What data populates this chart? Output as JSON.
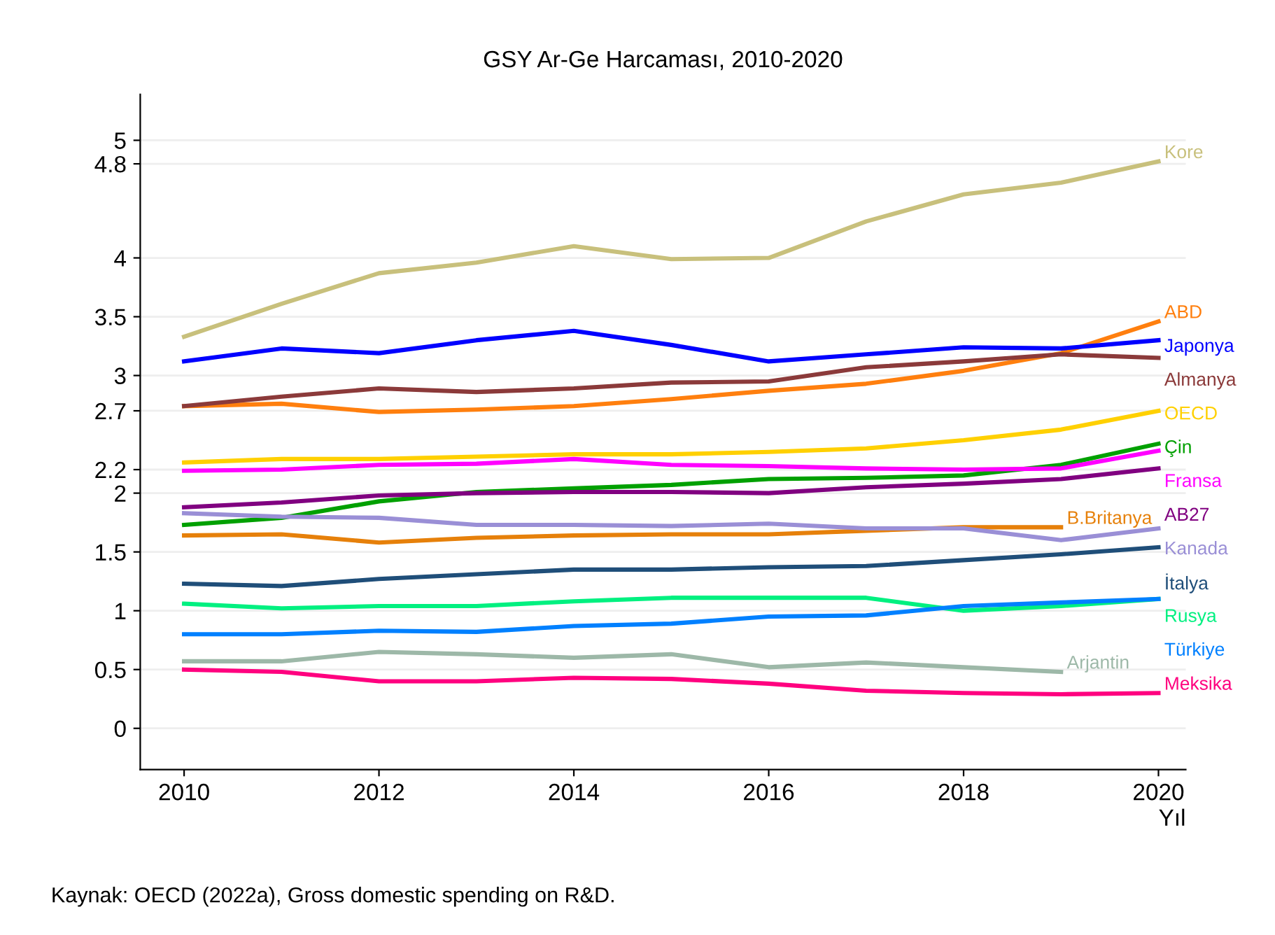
{
  "chart_data": {
    "type": "line",
    "title": "GSY Ar-Ge Harcaması, 2010-2020",
    "xlabel": "Yıl",
    "annotations": [
      "Kaynak: OECD (2022a), Gross domestic spending on R&D."
    ],
    "x": [
      2010,
      2011,
      2012,
      2013,
      2014,
      2015,
      2016,
      2017,
      2018,
      2019,
      2020
    ],
    "xlim": [
      2009.55,
      2020.28
    ],
    "xticks": [
      2010,
      2012,
      2014,
      2016,
      2018,
      2020
    ],
    "ylim": [
      -0.35,
      5.39
    ],
    "yticks": [
      0,
      0.5,
      1,
      1.5,
      2,
      2.2,
      2.7,
      3,
      3.5,
      4,
      4.8,
      5
    ],
    "grid": "y",
    "legend": false,
    "marker": "none",
    "line_style": "solid",
    "series": [
      {
        "name": "Kore",
        "color": "#c8c07c",
        "values": [
          3.33,
          3.61,
          3.87,
          3.96,
          4.1,
          3.99,
          4.0,
          4.31,
          4.54,
          4.64,
          4.82
        ]
      },
      {
        "name": "ABD",
        "color": "#ff7f0e",
        "values": [
          2.74,
          2.76,
          2.69,
          2.71,
          2.74,
          2.8,
          2.87,
          2.93,
          3.04,
          3.19,
          3.46
        ]
      },
      {
        "name": "Japonya",
        "color": "#0000ff",
        "values": [
          3.12,
          3.23,
          3.19,
          3.3,
          3.38,
          3.26,
          3.12,
          3.18,
          3.24,
          3.23,
          3.3
        ]
      },
      {
        "name": "Almanya",
        "color": "#8b3a3a",
        "values": [
          2.74,
          2.82,
          2.89,
          2.86,
          2.89,
          2.94,
          2.95,
          3.07,
          3.12,
          3.18,
          3.15
        ]
      },
      {
        "name": "OECD",
        "color": "#ffd000",
        "values": [
          2.26,
          2.29,
          2.29,
          2.31,
          2.33,
          2.33,
          2.35,
          2.38,
          2.45,
          2.54,
          2.7
        ]
      },
      {
        "name": "Çin",
        "color": "#00a000",
        "values": [
          1.73,
          1.79,
          1.93,
          2.01,
          2.04,
          2.07,
          2.12,
          2.13,
          2.15,
          2.24,
          2.42
        ]
      },
      {
        "name": "Fransa",
        "color": "#ff00ff",
        "values": [
          2.19,
          2.2,
          2.24,
          2.25,
          2.29,
          2.24,
          2.23,
          2.21,
          2.2,
          2.21,
          2.36
        ]
      },
      {
        "name": "AB27",
        "color": "#800080",
        "values": [
          1.88,
          1.92,
          1.98,
          2.0,
          2.01,
          2.01,
          2.0,
          2.05,
          2.08,
          2.12,
          2.21
        ]
      },
      {
        "name": "B.Britanya",
        "color": "#e6800a",
        "values": [
          1.64,
          1.65,
          1.58,
          1.62,
          1.64,
          1.65,
          1.65,
          1.68,
          1.71,
          1.71,
          null
        ]
      },
      {
        "name": "Kanada",
        "color": "#9a8fd6",
        "values": [
          1.83,
          1.8,
          1.79,
          1.73,
          1.73,
          1.72,
          1.74,
          1.7,
          1.7,
          1.6,
          1.7
        ]
      },
      {
        "name": "İtalya",
        "color": "#1f4e79",
        "values": [
          1.23,
          1.21,
          1.27,
          1.31,
          1.35,
          1.35,
          1.37,
          1.38,
          1.43,
          1.48,
          1.54
        ]
      },
      {
        "name": "Rusya",
        "color": "#00f080",
        "values": [
          1.06,
          1.02,
          1.04,
          1.04,
          1.08,
          1.11,
          1.11,
          1.11,
          1.0,
          1.04,
          1.1
        ]
      },
      {
        "name": "Türkiye",
        "color": "#0080ff",
        "values": [
          0.8,
          0.8,
          0.83,
          0.82,
          0.87,
          0.89,
          0.95,
          0.96,
          1.04,
          1.07,
          1.1
        ]
      },
      {
        "name": "Arjantin",
        "color": "#9db8a8",
        "values": [
          0.57,
          0.57,
          0.65,
          0.63,
          0.6,
          0.63,
          0.52,
          0.56,
          0.52,
          0.48,
          null
        ]
      },
      {
        "name": "Meksika",
        "color": "#ff007f",
        "values": [
          0.5,
          0.48,
          0.4,
          0.4,
          0.43,
          0.42,
          0.38,
          0.32,
          0.3,
          0.29,
          0.3
        ]
      }
    ]
  }
}
